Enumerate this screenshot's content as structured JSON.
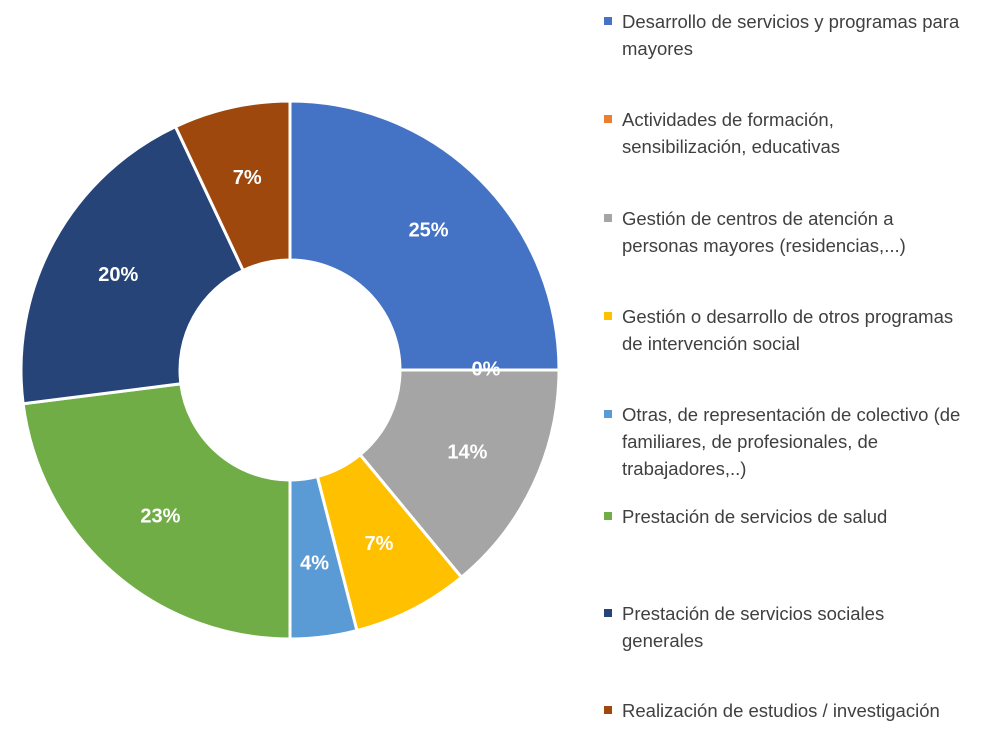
{
  "chart_data": {
    "type": "donut",
    "categories": [
      "Desarrollo de servicios y programas para mayores",
      "Actividades de formación, sensibilización, educativas",
      "Gestión de centros de atención a personas mayores (residencias,...)",
      "Gestión o desarrollo de otros programas de intervención social",
      "Otras, de representación de colectivo (de familiares, de profesionales, de trabajadores,..)",
      "Prestación de servicios de salud",
      "Prestación de servicios sociales generales",
      "Realización de estudios / investigación"
    ],
    "values": [
      25,
      0,
      14,
      7,
      4,
      23,
      20,
      7
    ],
    "value_labels": [
      "25%",
      "0%",
      "14%",
      "7%",
      "4%",
      "23%",
      "20%",
      "7%"
    ],
    "colors": [
      "#4472c4",
      "#ed7d31",
      "#a5a5a5",
      "#ffc000",
      "#5b9bd5",
      "#70ad47",
      "#264478",
      "#9e480e"
    ]
  }
}
